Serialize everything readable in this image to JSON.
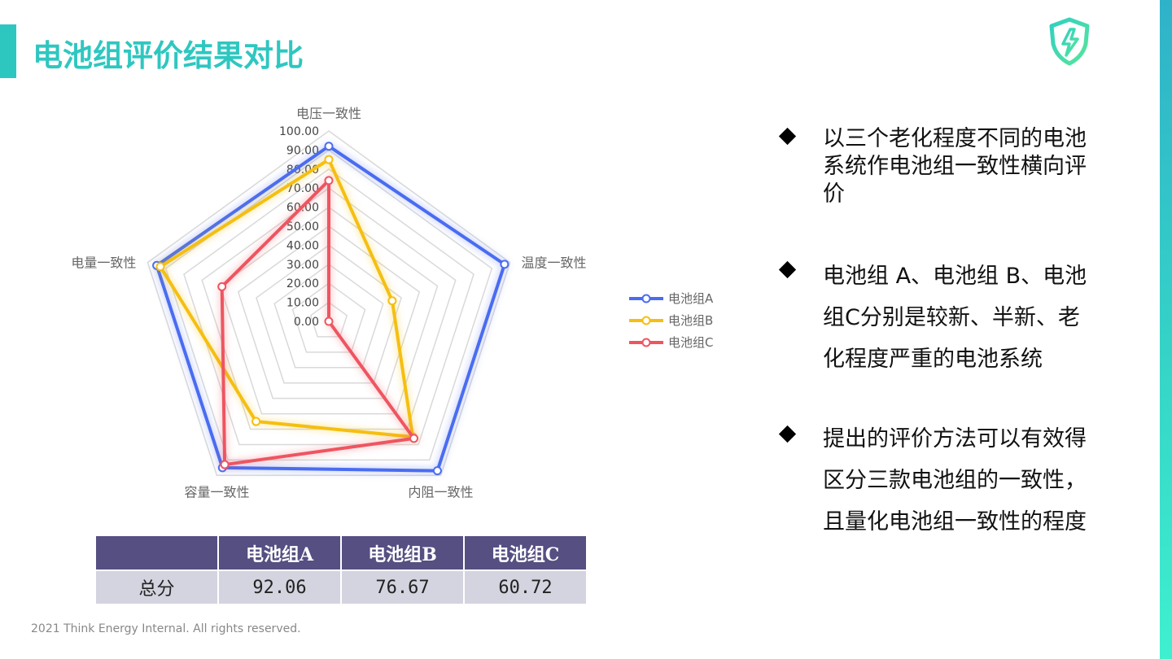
{
  "page": {
    "title": "电池组评价结果对比",
    "footer": "2021 Think Energy Internal. All rights reserved."
  },
  "chart_data": {
    "type": "radar",
    "axes": [
      "电压一致性",
      "温度一致性",
      "内阻一致性",
      "容量一致性",
      "电量一致性"
    ],
    "tick_labels": [
      "0.00",
      "10.00",
      "20.00",
      "30.00",
      "40.00",
      "50.00",
      "60.00",
      "70.00",
      "80.00",
      "90.00",
      "100.00"
    ],
    "range": [
      0,
      100
    ],
    "series": [
      {
        "name": "电池组A",
        "color": "#4a6cf0",
        "values": [
          92,
          97,
          97,
          95,
          95
        ]
      },
      {
        "name": "电池组B",
        "color": "#f5bf11",
        "values": [
          85,
          35,
          75,
          65,
          93
        ]
      },
      {
        "name": "电池组C",
        "color": "#ee5561",
        "values": [
          74,
          0,
          76,
          93,
          59
        ]
      }
    ],
    "legend_position": "right",
    "grid": true
  },
  "table": {
    "headers": [
      "",
      "电池组A",
      "电池组B",
      "电池组C"
    ],
    "rows": [
      [
        "总分",
        "92.06",
        "76.67",
        "60.72"
      ]
    ]
  },
  "bullets": [
    "以三个老化程度不同的电池系统作电池组一致性横向评价",
    "电池组 A、电池组 B、电池组C分别是较新、半新、老化程度严重的电池系统",
    "提出的评价方法可以有效得区分三款电池组的一致性，且量化电池组一致性的程度"
  ],
  "icons": {
    "logo": "shield-lightning-icon",
    "bullet": "diamond-icon"
  }
}
